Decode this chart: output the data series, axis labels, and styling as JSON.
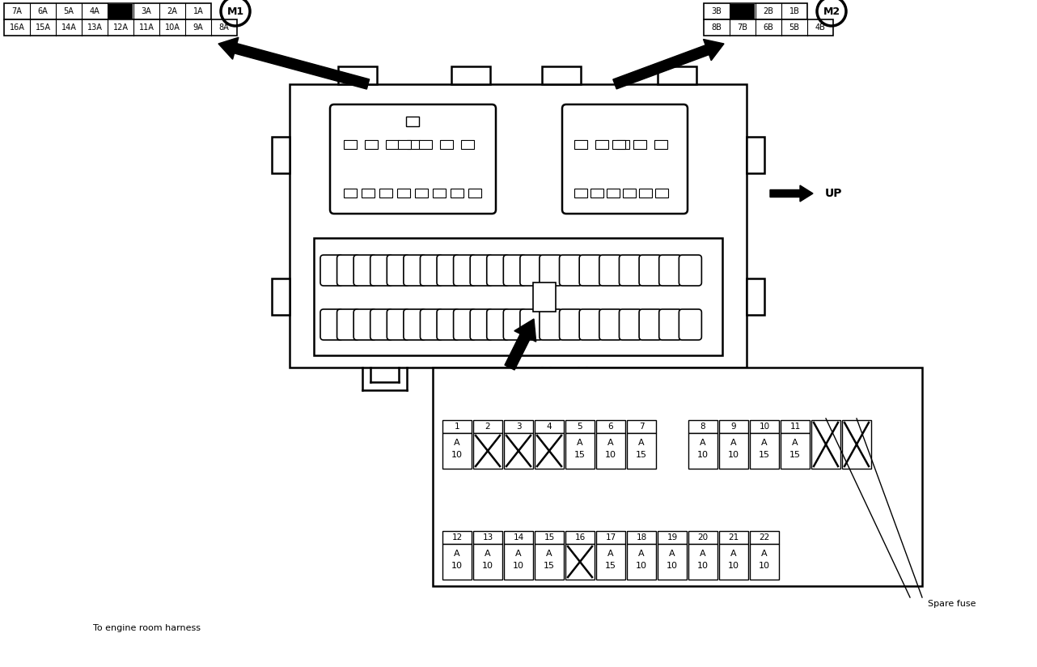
{
  "bg_color": "#ffffff",
  "connector_m1_top_row": [
    "7A",
    "6A",
    "5A",
    "4A",
    "",
    "3A",
    "2A",
    "1A"
  ],
  "connector_m1_bot_row": [
    "16A",
    "15A",
    "14A",
    "13A",
    "12A",
    "11A",
    "10A",
    "9A",
    "8A"
  ],
  "connector_m2_top_row": [
    "3B",
    "",
    "2B",
    "1B"
  ],
  "connector_m2_bot_row": [
    "8B",
    "7B",
    "6B",
    "5B",
    "4B"
  ],
  "fuse_top_row": [
    [
      "1",
      "10",
      "A",
      false
    ],
    [
      "2",
      "",
      "",
      true
    ],
    [
      "3",
      "",
      "",
      true
    ],
    [
      "4",
      "",
      "",
      true
    ],
    [
      "5",
      "15",
      "A",
      false
    ],
    [
      "6",
      "10",
      "A",
      false
    ],
    [
      "7",
      "15",
      "A",
      false
    ],
    null,
    [
      "8",
      "10",
      "A",
      false
    ],
    [
      "9",
      "10",
      "A",
      false
    ],
    [
      "10",
      "15",
      "A",
      false
    ],
    [
      "11",
      "15",
      "A",
      false
    ]
  ],
  "fuse_bot_row": [
    [
      "12",
      "10",
      "A",
      false
    ],
    [
      "13",
      "10",
      "A",
      false
    ],
    [
      "14",
      "10",
      "A",
      false
    ],
    [
      "15",
      "15",
      "A",
      false
    ],
    [
      "16",
      "",
      "",
      true
    ],
    [
      "17",
      "15",
      "A",
      false
    ],
    [
      "18",
      "10",
      "A",
      false
    ],
    [
      "19",
      "10",
      "A",
      false
    ],
    [
      "20",
      "10",
      "A",
      false
    ],
    [
      "21",
      "10",
      "A",
      false
    ],
    [
      "22",
      "10",
      "A",
      false
    ]
  ],
  "bottom_text": "To engine room harness",
  "up_label": "UP",
  "m1_label": "M1",
  "m2_label": "M2",
  "spare_label": "Spare fuse"
}
